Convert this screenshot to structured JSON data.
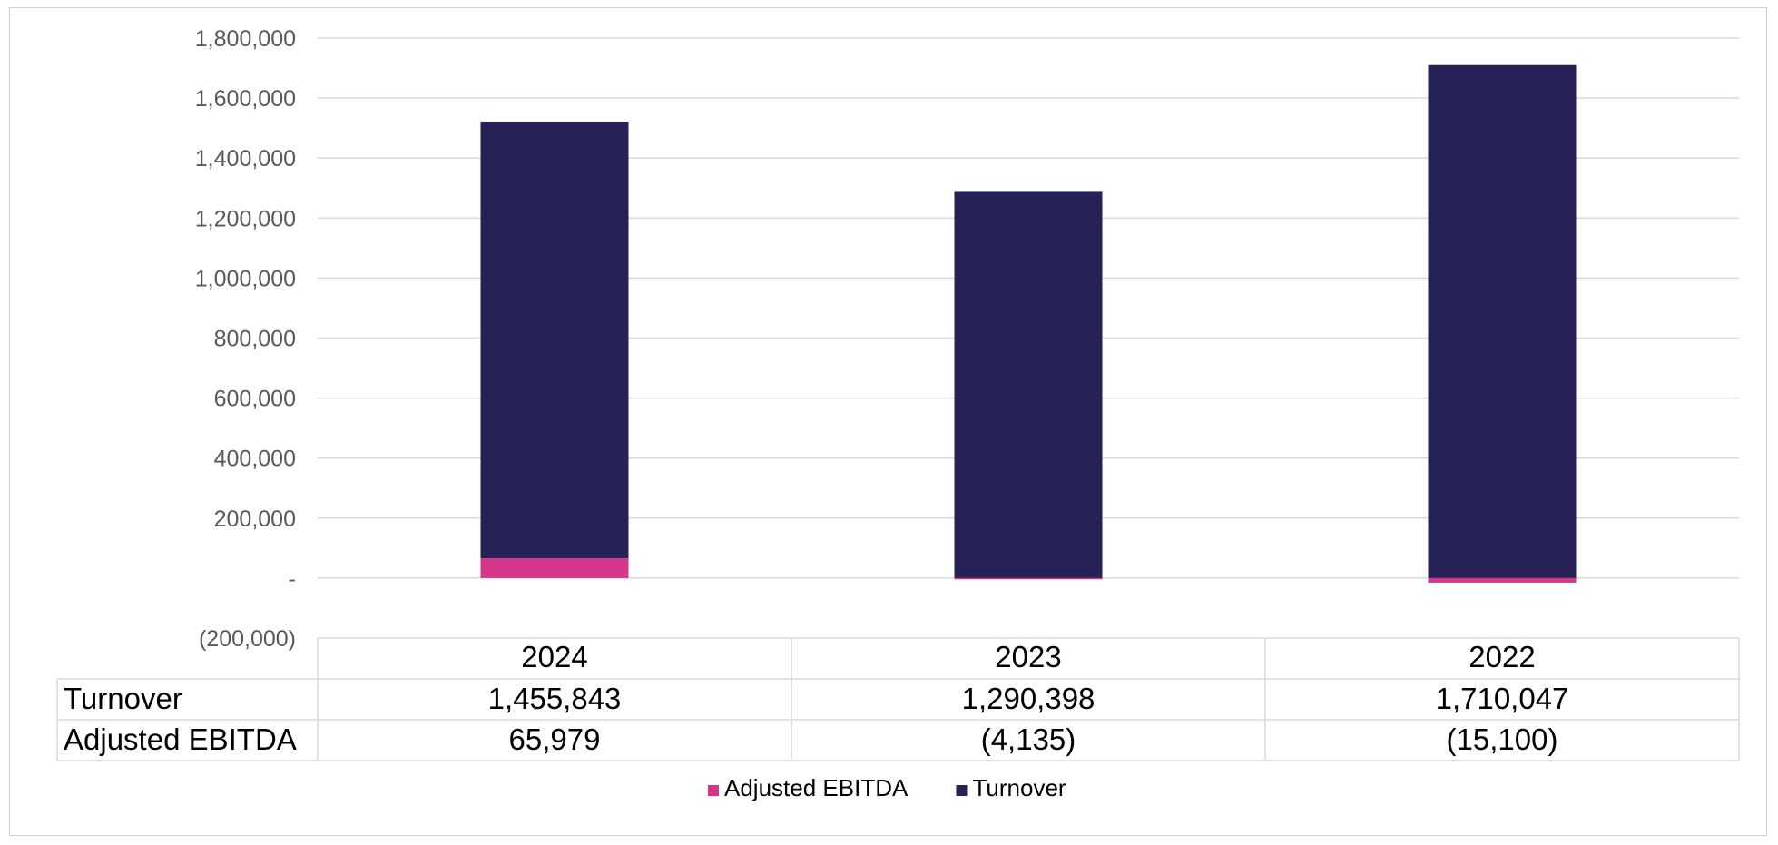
{
  "chart_data": {
    "type": "bar",
    "stacked": true,
    "categories": [
      "2024",
      "2023",
      "2022"
    ],
    "series": [
      {
        "name": "Adjusted EBITDA",
        "values": [
          65979,
          -4135,
          -15100
        ],
        "labels": [
          "65,979",
          "(4,135)",
          "(15,100)"
        ],
        "color": "#D6368A"
      },
      {
        "name": "Turnover",
        "values": [
          1455843,
          1290398,
          1710047
        ],
        "labels": [
          "1,455,843",
          "1,290,398",
          "1,710,047"
        ],
        "color": "#262257"
      }
    ],
    "ylim": [
      -200000,
      1800000
    ],
    "yticks": [
      1800000,
      1600000,
      1400000,
      1200000,
      1000000,
      800000,
      600000,
      400000,
      200000,
      0,
      -200000
    ],
    "ytick_labels": [
      "1,800,000",
      "1,600,000",
      "1,400,000",
      "1,200,000",
      "1,000,000",
      "800,000",
      "600,000",
      "400,000",
      "200,000",
      "-",
      "(200,000)"
    ],
    "grid": true,
    "data_table": {
      "rows": [
        {
          "name": "Turnover",
          "series": 1
        },
        {
          "name": "Adjusted EBITDA",
          "series": 0
        }
      ]
    },
    "legend": {
      "position": "bottom",
      "order": [
        0,
        1
      ]
    }
  }
}
